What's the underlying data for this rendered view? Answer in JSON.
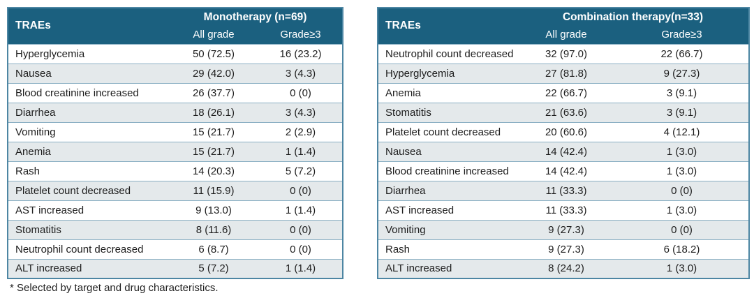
{
  "footnote": "* Selected by target and drug characteristics.",
  "colors": {
    "header_bg": "#1b607f",
    "header_text": "#ffffff",
    "row_bg": "#ffffff",
    "row_alt_bg": "#e4e9eb",
    "row_border": "#8aafc3",
    "outer_border": "#4d86a3",
    "body_text": "#1d1d1d"
  },
  "chart_data": [
    {
      "type": "table",
      "title": "Monotherapy (n=69)",
      "row_header_label": "TRAEs",
      "columns": [
        "All grade",
        "Grade≥3"
      ],
      "rows": [
        {
          "trae": "Hyperglycemia",
          "all_grade": "50 (72.5)",
          "grade_ge3": "16 (23.2)"
        },
        {
          "trae": "Nausea",
          "all_grade": "29 (42.0)",
          "grade_ge3": "3 (4.3)"
        },
        {
          "trae": "Blood creatinine increased",
          "all_grade": "26 (37.7)",
          "grade_ge3": "0 (0)"
        },
        {
          "trae": "Diarrhea",
          "all_grade": "18 (26.1)",
          "grade_ge3": "3 (4.3)"
        },
        {
          "trae": "Vomiting",
          "all_grade": "15 (21.7)",
          "grade_ge3": "2 (2.9)"
        },
        {
          "trae": "Anemia",
          "all_grade": "15 (21.7)",
          "grade_ge3": "1 (1.4)"
        },
        {
          "trae": "Rash",
          "all_grade": "14 (20.3)",
          "grade_ge3": "5 (7.2)"
        },
        {
          "trae": "Platelet count decreased",
          "all_grade": "11 (15.9)",
          "grade_ge3": "0 (0)"
        },
        {
          "trae": "AST increased",
          "all_grade": "9 (13.0)",
          "grade_ge3": "1 (1.4)"
        },
        {
          "trae": "Stomatitis",
          "all_grade": "8 (11.6)",
          "grade_ge3": "0 (0)"
        },
        {
          "trae": "Neutrophil count decreased",
          "all_grade": "6 (8.7)",
          "grade_ge3": "0 (0)"
        },
        {
          "trae": "ALT increased",
          "all_grade": "5 (7.2)",
          "grade_ge3": "1 (1.4)"
        }
      ]
    },
    {
      "type": "table",
      "title": "Combination therapy(n=33)",
      "row_header_label": "TRAEs",
      "columns": [
        "All grade",
        "Grade≥3"
      ],
      "rows": [
        {
          "trae": "Neutrophil count decreased",
          "all_grade": "32 (97.0)",
          "grade_ge3": "22 (66.7)"
        },
        {
          "trae": "Hyperglycemia",
          "all_grade": "27 (81.8)",
          "grade_ge3": "9 (27.3)"
        },
        {
          "trae": "Anemia",
          "all_grade": "22 (66.7)",
          "grade_ge3": "3 (9.1)"
        },
        {
          "trae": "Stomatitis",
          "all_grade": "21 (63.6)",
          "grade_ge3": "3 (9.1)"
        },
        {
          "trae": "Platelet count decreased",
          "all_grade": "20 (60.6)",
          "grade_ge3": "4 (12.1)"
        },
        {
          "trae": "Nausea",
          "all_grade": "14 (42.4)",
          "grade_ge3": "1 (3.0)"
        },
        {
          "trae": "Blood creatinine increased",
          "all_grade": "14 (42.4)",
          "grade_ge3": "1 (3.0)"
        },
        {
          "trae": "Diarrhea",
          "all_grade": "11 (33.3)",
          "grade_ge3": "0 (0)"
        },
        {
          "trae": "AST increased",
          "all_grade": "11 (33.3)",
          "grade_ge3": "1 (3.0)"
        },
        {
          "trae": "Vomiting",
          "all_grade": "9 (27.3)",
          "grade_ge3": "0 (0)"
        },
        {
          "trae": "Rash",
          "all_grade": "9 (27.3)",
          "grade_ge3": "6 (18.2)"
        },
        {
          "trae": "ALT increased",
          "all_grade": "8 (24.2)",
          "grade_ge3": "1 (3.0)"
        }
      ]
    }
  ]
}
